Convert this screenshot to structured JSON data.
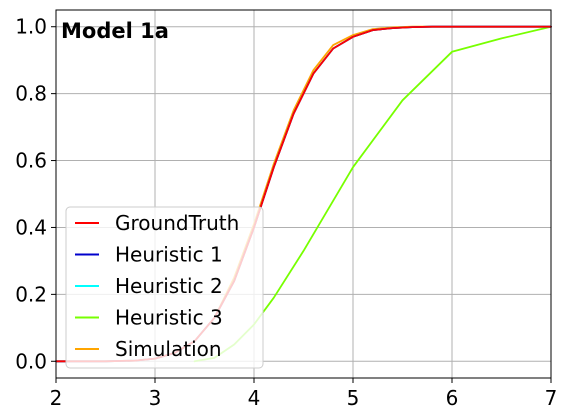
{
  "chart_data": {
    "type": "line",
    "title": "",
    "panel_label": "Model 1a",
    "xlabel": "",
    "ylabel": "",
    "xlim": [
      2,
      7
    ],
    "ylim": [
      -0.05,
      1.05
    ],
    "xticks": [
      2,
      3,
      4,
      5,
      6,
      7
    ],
    "yticks": [
      0.0,
      0.2,
      0.4,
      0.6,
      0.8,
      1.0
    ],
    "xtick_labels": [
      "2",
      "3",
      "4",
      "5",
      "6",
      "7"
    ],
    "ytick_labels": [
      "0.0",
      "0.2",
      "0.4",
      "0.6",
      "0.8",
      "1.0"
    ],
    "grid": true,
    "legend_position": "lower-left",
    "series": [
      {
        "name": "GroundTruth",
        "color": "#ff0000",
        "x": [
          2,
          2.5,
          2.8,
          3.0,
          3.2,
          3.4,
          3.6,
          3.8,
          4.0,
          4.2,
          4.4,
          4.6,
          4.8,
          5.0,
          5.2,
          5.4,
          5.6,
          5.8,
          6.0,
          6.5,
          7.0
        ],
        "y": [
          0.0,
          0.0,
          0.002,
          0.008,
          0.025,
          0.06,
          0.13,
          0.24,
          0.4,
          0.58,
          0.74,
          0.86,
          0.935,
          0.97,
          0.99,
          0.996,
          0.999,
          1.0,
          1.0,
          1.0,
          1.0
        ]
      },
      {
        "name": "Heuristic 1",
        "color": "#0000cc",
        "x": [
          2,
          2.5,
          2.8,
          3.0,
          3.2,
          3.4,
          3.6,
          3.8,
          4.0,
          4.2,
          4.4,
          4.6,
          4.8,
          5.0,
          5.2,
          5.4,
          5.6,
          5.8,
          6.0,
          6.5,
          7.0
        ],
        "y": [
          0.0,
          0.0,
          0.002,
          0.008,
          0.025,
          0.06,
          0.13,
          0.24,
          0.4,
          0.58,
          0.74,
          0.86,
          0.935,
          0.97,
          0.99,
          0.996,
          0.999,
          1.0,
          1.0,
          1.0,
          1.0
        ]
      },
      {
        "name": "Heuristic 2",
        "color": "#00ffff",
        "x": [
          2,
          2.5,
          2.8,
          3.0,
          3.2,
          3.4,
          3.6,
          3.8,
          4.0,
          4.2,
          4.4,
          4.6,
          4.8,
          5.0,
          5.2,
          5.4,
          5.6,
          5.8,
          6.0,
          6.5,
          7.0
        ],
        "y": [
          0.0,
          0.0,
          0.002,
          0.008,
          0.025,
          0.06,
          0.13,
          0.24,
          0.4,
          0.58,
          0.74,
          0.86,
          0.935,
          0.97,
          0.99,
          0.996,
          0.999,
          1.0,
          1.0,
          1.0,
          1.0
        ]
      },
      {
        "name": "Heuristic 3",
        "color": "#77ff00",
        "x": [
          3.4,
          3.6,
          3.8,
          4.0,
          4.2,
          4.5,
          5.0,
          5.5,
          6.0,
          6.5,
          7.0
        ],
        "y": [
          0.0,
          0.01,
          0.05,
          0.11,
          0.19,
          0.33,
          0.58,
          0.78,
          0.925,
          0.965,
          1.0
        ]
      },
      {
        "name": "Simulation",
        "color": "#ffa500",
        "x": [
          2,
          2.5,
          2.8,
          3.0,
          3.2,
          3.4,
          3.6,
          3.8,
          4.0,
          4.2,
          4.4,
          4.6,
          4.8,
          5.0,
          5.2,
          5.4,
          5.6,
          5.8,
          6.0,
          6.5,
          7.0
        ],
        "y": [
          0.0,
          0.0,
          0.002,
          0.008,
          0.025,
          0.06,
          0.13,
          0.25,
          0.41,
          0.59,
          0.75,
          0.87,
          0.945,
          0.975,
          0.993,
          0.998,
          1.0,
          1.0,
          1.0,
          1.0,
          1.0
        ]
      }
    ]
  }
}
